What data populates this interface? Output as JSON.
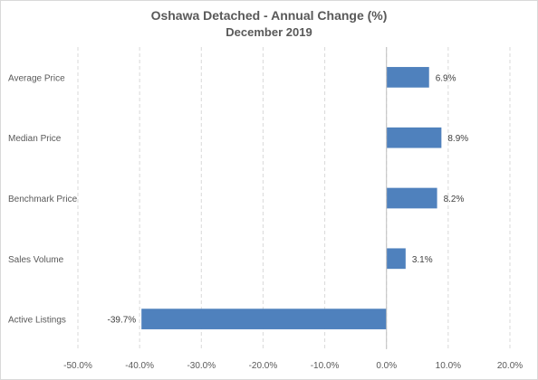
{
  "chart_data": {
    "type": "bar",
    "orientation": "horizontal",
    "title": "Oshawa Detached - Annual Change (%)",
    "subtitle": "December 2019",
    "categories": [
      "Average Price",
      "Median Price",
      "Benchmark Price",
      "Sales Volume",
      "Active Listings"
    ],
    "values": [
      6.9,
      8.9,
      8.2,
      3.1,
      -39.7
    ],
    "data_labels": [
      "6.9%",
      "8.9%",
      "8.2%",
      "3.1%",
      "-39.7%"
    ],
    "xlim": [
      -50,
      20
    ],
    "x_ticks": [
      -50,
      -40,
      -30,
      -20,
      -10,
      0,
      10,
      20
    ],
    "x_tick_labels": [
      "-50.0%",
      "-40.0%",
      "-30.0%",
      "-20.0%",
      "-10.0%",
      "0.0%",
      "10.0%",
      "20.0%"
    ],
    "grid": "vertical dashed",
    "bar_color": "#4f81bd",
    "legend": "none"
  }
}
